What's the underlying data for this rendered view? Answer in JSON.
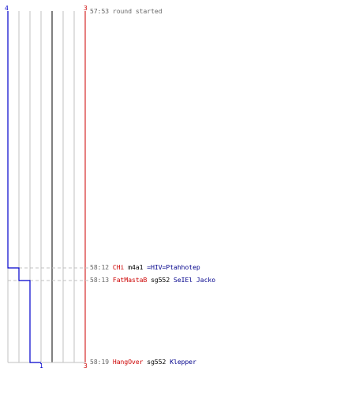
{
  "colors": {
    "red_team": "#cc0000",
    "blue_team": "#0000cc",
    "grid": "#c0c0c0",
    "midline": "#808080",
    "dashed": "#c0c0c0",
    "time_text": "#666666"
  },
  "scores": {
    "blue_start": "4",
    "red_start": "3",
    "blue_end": "1",
    "red_end": "3"
  },
  "events": [
    {
      "time": "57:53",
      "text": "round started"
    },
    {
      "time": "58:12",
      "killer": "CHi",
      "weapon": "m4a1",
      "victim": "=HIV=Ptahhotep"
    },
    {
      "time": "58:13",
      "killer": "FatMastaB",
      "weapon": "sg552",
      "victim": "SeIEl Jacko"
    },
    {
      "time": "58:19",
      "killer": "HangOver",
      "weapon": "sg552",
      "victim": "Klepper"
    }
  ],
  "timeline": {
    "blue_steps": [
      4,
      3,
      2,
      1
    ],
    "red_steps": [
      3,
      3,
      3,
      3
    ],
    "max_players": 8
  }
}
